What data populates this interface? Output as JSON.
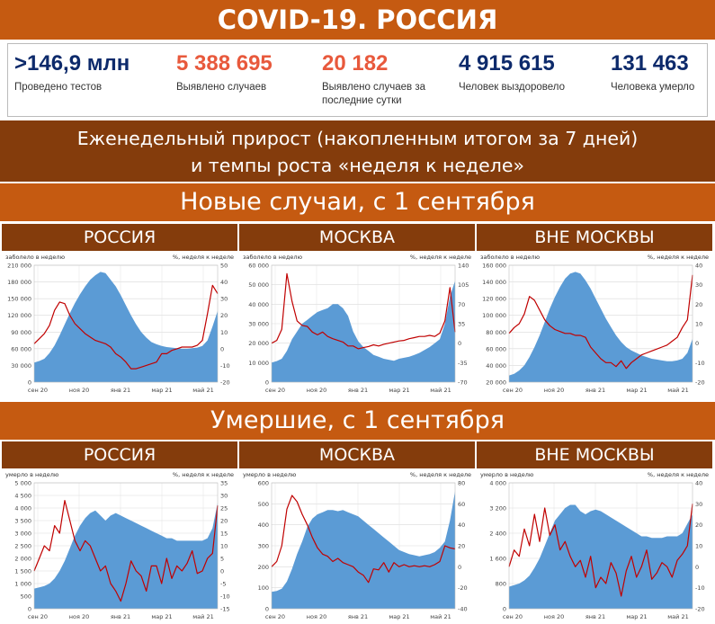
{
  "title": "COVID-19. РОССИЯ",
  "stats": [
    {
      "value": ">146,9 млн",
      "label": "Проведено тестов",
      "color": "#0d2a6b"
    },
    {
      "value": "5 388 695",
      "label": "Выявлено случаев",
      "color": "#e8593c"
    },
    {
      "value": "20 182",
      "label": "Выявлено случаев за последние сутки",
      "color": "#e8593c"
    },
    {
      "value": "4 915 615",
      "label": "Человек выздоровело",
      "color": "#0d2a6b"
    },
    {
      "value": "131 463",
      "label": "Человека умерло",
      "color": "#0d2a6b"
    }
  ],
  "subtitle_line1": "Еженедельный прирост (накопленным итогом за 7 дней)",
  "subtitle_line2": "и темпы роста «неделя к неделе»",
  "section_cases": "Новые случаи, с 1 сентября",
  "section_deaths": "Умершие, с 1 сентября",
  "colors": {
    "area": "#5b9bd5",
    "line": "#c00000",
    "header": "#c55a11",
    "dark": "#843c0c"
  },
  "chart_data": [
    {
      "type": "area",
      "panel_title": "РОССИЯ",
      "left_axis_label": "заболело в неделю",
      "right_axis_label": "%, неделя к неделе",
      "x_ticks": [
        "сен 20",
        "ноя 20",
        "янв 21",
        "мар 21",
        "май 21"
      ],
      "y_ticks_left": [
        "0",
        "30 000",
        "60 000",
        "90 000",
        "120 000",
        "150 000",
        "180 000",
        "210 000"
      ],
      "y_ticks_right": [
        "-20",
        "-10",
        "0",
        "10",
        "20",
        "30",
        "40",
        "50"
      ],
      "ylim_left": [
        0,
        210000
      ],
      "ylim_right": [
        -20,
        50
      ],
      "area_series": [
        35000,
        38000,
        42000,
        52000,
        66000,
        84000,
        104000,
        124000,
        142000,
        158000,
        172000,
        184000,
        192000,
        198000,
        196000,
        184000,
        172000,
        156000,
        138000,
        120000,
        104000,
        90000,
        80000,
        72000,
        68000,
        65000,
        63000,
        62000,
        61000,
        60000,
        60000,
        61000,
        62000,
        65000,
        75000,
        100000,
        128000
      ],
      "line_series": [
        3,
        6,
        9,
        14,
        23,
        28,
        27,
        20,
        15,
        12,
        9,
        7,
        5,
        4,
        3,
        1,
        -3,
        -5,
        -8,
        -12,
        -12,
        -11,
        -10,
        -9,
        -8,
        -3,
        -3,
        -1,
        0,
        1,
        1,
        1,
        2,
        5,
        21,
        38,
        33
      ]
    },
    {
      "type": "area",
      "panel_title": "МОСКВА",
      "left_axis_label": "заболело в неделю",
      "right_axis_label": "%, неделя к неделе",
      "x_ticks": [
        "сен 20",
        "ноя 20",
        "янв 21",
        "мар 21",
        "май 21"
      ],
      "y_ticks_left": [
        "0",
        "10 000",
        "20 000",
        "30 000",
        "40 000",
        "50 000",
        "60 000"
      ],
      "y_ticks_right": [
        "-70",
        "-35",
        "0",
        "35",
        "70",
        "105",
        "140"
      ],
      "ylim_left": [
        0,
        60000
      ],
      "ylim_right": [
        -70,
        140
      ],
      "area_series": [
        10000,
        10800,
        12000,
        16000,
        22000,
        26000,
        30000,
        32000,
        34000,
        36000,
        37000,
        38000,
        40000,
        40000,
        38000,
        34000,
        26000,
        21000,
        18000,
        16000,
        14000,
        13000,
        12000,
        11500,
        11000,
        12000,
        12500,
        13000,
        14000,
        15000,
        16500,
        18000,
        20000,
        22000,
        30000,
        44000,
        52000
      ],
      "line_series": [
        0,
        5,
        25,
        125,
        75,
        40,
        32,
        30,
        20,
        15,
        20,
        12,
        8,
        5,
        2,
        -5,
        -5,
        -10,
        -8,
        -6,
        -3,
        -5,
        -2,
        0,
        2,
        4,
        5,
        8,
        10,
        12,
        12,
        14,
        12,
        18,
        40,
        100,
        20
      ]
    },
    {
      "type": "area",
      "panel_title": "ВНЕ МОСКВЫ",
      "left_axis_label": "заболело в неделю",
      "right_axis_label": "%, неделя к неделе",
      "x_ticks": [
        "сен 20",
        "ноя 20",
        "янв 21",
        "мар 21",
        "май 21"
      ],
      "y_ticks_left": [
        "20 000",
        "40 000",
        "60 000",
        "80 000",
        "100 000",
        "120 000",
        "140 000",
        "160 000"
      ],
      "y_ticks_right": [
        "-20",
        "-10",
        "0",
        "10",
        "20",
        "30",
        "40"
      ],
      "ylim_left": [
        20000,
        160000
      ],
      "ylim_right": [
        -20,
        40
      ],
      "area_series": [
        28000,
        30000,
        34000,
        40000,
        50000,
        62000,
        76000,
        92000,
        108000,
        122000,
        134000,
        144000,
        150000,
        152000,
        150000,
        142000,
        132000,
        120000,
        108000,
        96000,
        86000,
        76000,
        68000,
        62000,
        58000,
        55000,
        52000,
        50000,
        48000,
        47000,
        46000,
        45000,
        45000,
        46000,
        48000,
        55000,
        72000
      ],
      "line_series": [
        5,
        8,
        10,
        15,
        24,
        22,
        17,
        12,
        9,
        7,
        6,
        5,
        5,
        4,
        4,
        3,
        -2,
        -5,
        -8,
        -10,
        -10,
        -12,
        -9,
        -13,
        -10,
        -8,
        -6,
        -5,
        -4,
        -3,
        -2,
        -1,
        1,
        3,
        8,
        12,
        35
      ]
    },
    {
      "type": "area",
      "panel_title": "РОССИЯ",
      "left_axis_label": "умерло в неделю",
      "right_axis_label": "%, неделя к неделе",
      "x_ticks": [
        "сен 20",
        "ноя 20",
        "янв 21",
        "мар 21",
        "май 21"
      ],
      "y_ticks_left": [
        "0",
        "500",
        "1 000",
        "1 500",
        "2 000",
        "2 500",
        "3 000",
        "3 500",
        "4 000",
        "4 500",
        "5 000"
      ],
      "y_ticks_right": [
        "-15",
        "-10",
        "-5",
        "0",
        "5",
        "10",
        "15",
        "20",
        "25",
        "30",
        "35"
      ],
      "ylim_left": [
        0,
        5000
      ],
      "ylim_right": [
        -15,
        35
      ],
      "area_series": [
        800,
        850,
        900,
        1000,
        1200,
        1500,
        1900,
        2400,
        2900,
        3300,
        3600,
        3800,
        3900,
        3700,
        3500,
        3700,
        3800,
        3700,
        3600,
        3500,
        3400,
        3300,
        3200,
        3100,
        3000,
        2900,
        2800,
        2800,
        2700,
        2700,
        2700,
        2700,
        2700,
        2700,
        2800,
        3200,
        4200
      ],
      "line_series": [
        0,
        5,
        10,
        8,
        18,
        15,
        28,
        20,
        12,
        8,
        12,
        10,
        5,
        0,
        2,
        -5,
        -8,
        -12,
        -5,
        4,
        0,
        -2,
        -8,
        2,
        2,
        -5,
        5,
        -3,
        2,
        0,
        3,
        8,
        -1,
        0,
        5,
        7,
        26
      ]
    },
    {
      "type": "area",
      "panel_title": "МОСКВА",
      "left_axis_label": "умерло в неделю",
      "right_axis_label": "%, неделя к неделе",
      "x_ticks": [
        "сен 20",
        "ноя 20",
        "янв 21",
        "мар 21",
        "май 21"
      ],
      "y_ticks_left": [
        "0",
        "100",
        "200",
        "300",
        "400",
        "500",
        "600"
      ],
      "y_ticks_right": [
        "-40",
        "-20",
        "0",
        "20",
        "40",
        "60",
        "80"
      ],
      "ylim_left": [
        0,
        600
      ],
      "ylim_right": [
        -40,
        80
      ],
      "area_series": [
        80,
        85,
        95,
        130,
        190,
        260,
        320,
        390,
        430,
        450,
        460,
        470,
        470,
        465,
        470,
        460,
        450,
        440,
        420,
        400,
        380,
        360,
        340,
        320,
        300,
        280,
        270,
        260,
        255,
        250,
        255,
        260,
        270,
        290,
        320,
        420,
        560
      ],
      "line_series": [
        0,
        5,
        20,
        55,
        68,
        62,
        50,
        40,
        28,
        18,
        12,
        10,
        5,
        8,
        4,
        2,
        0,
        -5,
        -8,
        -15,
        -2,
        -3,
        4,
        -5,
        4,
        0,
        2,
        0,
        1,
        0,
        1,
        0,
        2,
        5,
        20,
        18,
        17
      ]
    },
    {
      "type": "area",
      "panel_title": "ВНЕ МОСКВЫ",
      "left_axis_label": "умерло в неделю",
      "right_axis_label": "%, неделя к неделе",
      "x_ticks": [
        "сен 20",
        "ноя 20",
        "янв 21",
        "мар 21",
        "май 21"
      ],
      "y_ticks_left": [
        "0",
        "800",
        "1 600",
        "2 400",
        "3 200",
        "4 000"
      ],
      "y_ticks_right": [
        "-20",
        "-10",
        "0",
        "10",
        "20",
        "30",
        "40"
      ],
      "ylim_left": [
        0,
        4000
      ],
      "ylim_right": [
        -20,
        40
      ],
      "area_series": [
        700,
        750,
        800,
        900,
        1050,
        1300,
        1600,
        2000,
        2400,
        2800,
        3000,
        3200,
        3300,
        3300,
        3100,
        3000,
        3100,
        3150,
        3100,
        3000,
        2900,
        2800,
        2700,
        2600,
        2500,
        2400,
        2300,
        2300,
        2250,
        2250,
        2250,
        2300,
        2300,
        2300,
        2400,
        2700,
        3000
      ],
      "line_series": [
        0,
        8,
        5,
        18,
        10,
        25,
        12,
        28,
        15,
        20,
        8,
        12,
        5,
        0,
        3,
        -5,
        5,
        -10,
        -5,
        -8,
        2,
        -3,
        -14,
        -2,
        5,
        -5,
        0,
        8,
        -6,
        -3,
        2,
        0,
        -5,
        3,
        6,
        10,
        30
      ]
    }
  ]
}
